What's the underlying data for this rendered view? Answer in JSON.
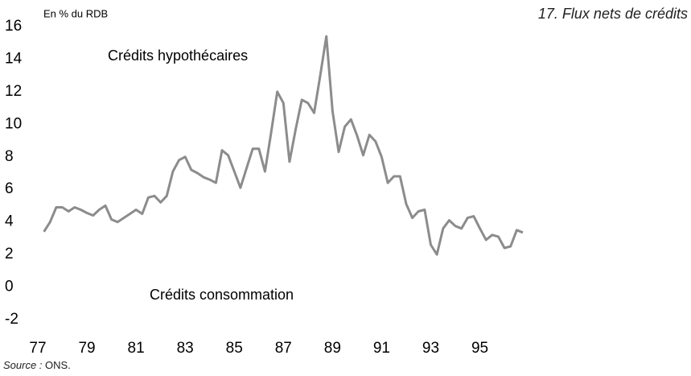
{
  "chart_data": {
    "type": "line",
    "title": "17. Flux nets de crédits",
    "y_axis_label": "En % du RDB",
    "annotations": [
      "Crédits consommation"
    ],
    "source_label": "Source :",
    "source": "ONS.",
    "x": [
      77.25,
      77.5,
      77.75,
      78,
      78.25,
      78.5,
      78.75,
      79,
      79.25,
      79.5,
      79.75,
      80,
      80.25,
      80.5,
      80.75,
      81,
      81.25,
      81.5,
      81.75,
      82,
      82.25,
      82.5,
      82.75,
      83,
      83.25,
      83.5,
      83.75,
      84,
      84.25,
      84.5,
      84.75,
      85,
      85.25,
      85.5,
      85.75,
      86,
      86.25,
      86.5,
      86.75,
      87,
      87.25,
      87.5,
      87.75,
      88,
      88.25,
      88.5,
      88.75,
      89,
      89.25,
      89.5,
      89.75,
      90,
      90.25,
      90.5,
      90.75,
      91,
      91.25,
      91.5,
      91.75,
      92,
      92.25,
      92.5,
      92.75,
      93,
      93.25,
      93.5,
      93.75,
      94,
      94.25,
      94.5,
      94.75,
      95,
      95.25,
      95.5,
      95.75,
      96,
      96.25,
      96.5,
      96.75
    ],
    "series": [
      {
        "name": "Crédits hypothécaires",
        "color": "#8c8c8c",
        "values": [
          3.4,
          4.0,
          4.9,
          4.9,
          4.65,
          4.9,
          4.75,
          4.55,
          4.4,
          4.75,
          5.0,
          4.15,
          4.0,
          4.25,
          4.5,
          4.75,
          4.5,
          5.5,
          5.6,
          5.2,
          5.6,
          7.1,
          7.8,
          8.0,
          7.2,
          7.0,
          6.75,
          6.6,
          6.4,
          8.4,
          8.1,
          7.1,
          6.1,
          7.3,
          8.5,
          8.5,
          7.1,
          9.5,
          12.0,
          11.3,
          7.7,
          9.7,
          11.5,
          11.3,
          10.7,
          13.0,
          15.4,
          10.8,
          8.3,
          9.85,
          10.3,
          9.3,
          8.1,
          9.35,
          8.95,
          8.0,
          6.4,
          6.8,
          6.8,
          5.1,
          4.25,
          4.65,
          4.75,
          2.6,
          2.0,
          3.6,
          4.1,
          3.75,
          3.6,
          4.25,
          4.35,
          3.6,
          2.9,
          3.2,
          3.1,
          2.4,
          2.5,
          3.5,
          3.35
        ]
      }
    ],
    "xlim": [
      77,
      96.75
    ],
    "xticks": [
      77,
      79,
      81,
      83,
      85,
      87,
      89,
      91,
      93,
      95
    ],
    "ylim": [
      -2,
      16
    ],
    "yticks": [
      -2,
      0,
      2,
      4,
      6,
      8,
      10,
      12,
      14,
      16
    ],
    "grid": false
  }
}
